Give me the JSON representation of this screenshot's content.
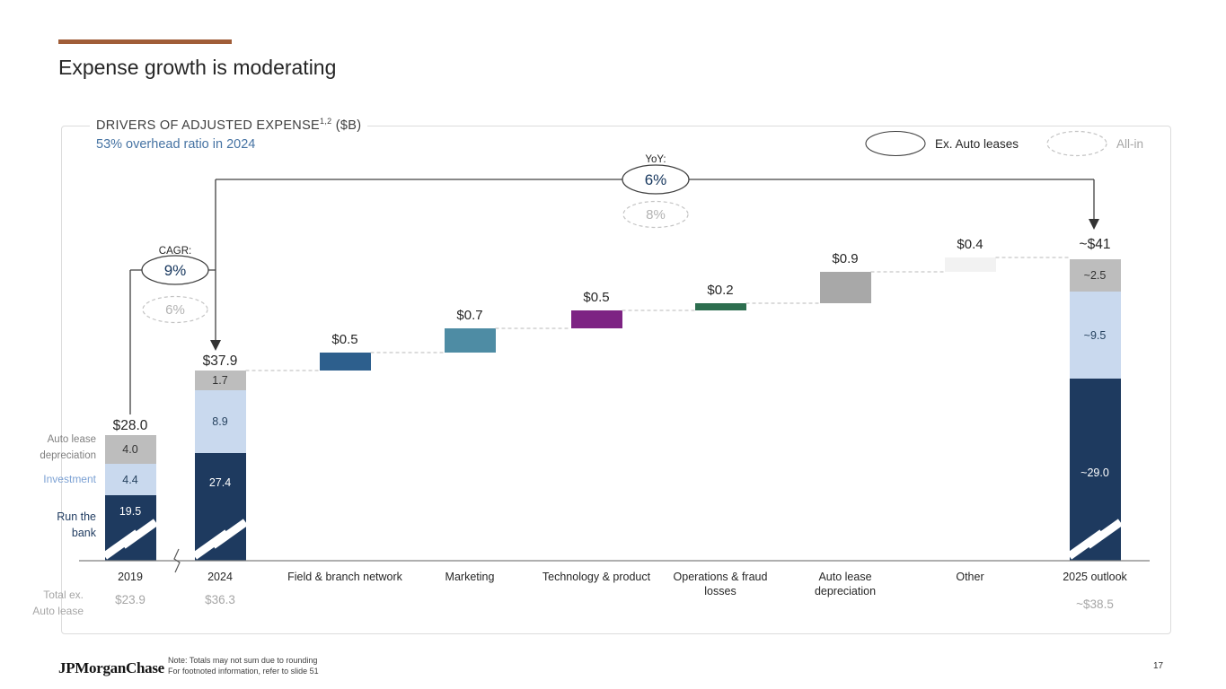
{
  "slide": {
    "title": "Expense growth is moderating",
    "accent_color": "#a05d38",
    "footer_logo": "JPMorganChase",
    "note_line1": "Note: Totals may not sum due to rounding",
    "note_line2": "For footnoted information, refer to slide 51",
    "page_number": "17"
  },
  "chart": {
    "heading": "DRIVERS OF ADJUSTED EXPENSE",
    "heading_superscript": "1,2",
    "heading_suffix": " ($B)",
    "subtitle": "53% overhead ratio in 2024"
  },
  "chart_data": {
    "type": "bar",
    "subtype": "waterfall_with_stacked_endpoints",
    "unit": "$B",
    "title": "DRIVERS OF ADJUSTED EXPENSE ($B)",
    "subtitle": "53% overhead ratio in 2024",
    "axis_break": true,
    "columns": [
      {
        "kind": "stack",
        "category": "2019",
        "total_label": "$28.0",
        "sub_label": "$23.9",
        "segments": [
          {
            "name": "Run the bank",
            "label": "19.5",
            "value": 19.5,
            "color": "#1e3a5f",
            "text_color": "#ffffff"
          },
          {
            "name": "Investment",
            "label": "4.4",
            "value": 4.4,
            "color": "#c9d9ee",
            "text_color": "#26425f"
          },
          {
            "name": "Auto lease depreciation",
            "label": "4.0",
            "value": 4.0,
            "color": "#bdbdbd",
            "text_color": "#333333"
          }
        ]
      },
      {
        "kind": "stack",
        "category": "2024",
        "total_label": "$37.9",
        "sub_label": "$36.3",
        "segments": [
          {
            "name": "Run the bank",
            "label": "27.4",
            "value": 27.4,
            "color": "#1e3a5f",
            "text_color": "#ffffff"
          },
          {
            "name": "Investment",
            "label": "8.9",
            "value": 8.9,
            "color": "#c9d9ee",
            "text_color": "#26425f"
          },
          {
            "name": "Auto lease depreciation",
            "label": "1.7",
            "value": 1.7,
            "color": "#bdbdbd",
            "text_color": "#333333"
          }
        ]
      },
      {
        "kind": "step",
        "category": "Field & branch network",
        "label": "$0.5",
        "value": 0.5,
        "color": "#2d5f8d"
      },
      {
        "kind": "step",
        "category": "Marketing",
        "label": "$0.7",
        "value": 0.7,
        "color": "#4e8ca4"
      },
      {
        "kind": "step",
        "category": "Technology & product",
        "label": "$0.5",
        "value": 0.5,
        "color": "#7d2383"
      },
      {
        "kind": "step",
        "category": "Operations & fraud losses",
        "label": "$0.2",
        "value": 0.2,
        "color": "#2d6e4f"
      },
      {
        "kind": "step",
        "category": "Auto lease depreciation",
        "label": "$0.9",
        "value": 0.9,
        "color": "#a8a8a8"
      },
      {
        "kind": "step",
        "category": "Other",
        "label": "$0.4",
        "value": 0.4,
        "color": "#f2f2f2"
      },
      {
        "kind": "stack",
        "category": "2025 outlook",
        "total_label": "~$41",
        "sub_label": "~$38.5",
        "segments": [
          {
            "name": "Run the bank",
            "label": "~29.0",
            "value": 29.0,
            "color": "#1e3a5f",
            "text_color": "#ffffff"
          },
          {
            "name": "Investment",
            "label": "~9.5",
            "value": 9.5,
            "color": "#c9d9ee",
            "text_color": "#26425f"
          },
          {
            "name": "Auto lease depreciation",
            "label": "~2.5",
            "value": 2.5,
            "color": "#bdbdbd",
            "text_color": "#333333"
          }
        ]
      }
    ],
    "annotations": {
      "cagr": {
        "label": "CAGR:",
        "ex_auto_leases": "9%",
        "all_in": "6%",
        "span": [
          "2019",
          "2024"
        ]
      },
      "yoy": {
        "label": "YoY:",
        "ex_auto_leases": "6%",
        "all_in": "8%",
        "span": [
          "2024",
          "2025 outlook"
        ]
      }
    },
    "legend": [
      {
        "label": "Ex. Auto leases",
        "marker": "solid-ellipse"
      },
      {
        "label": "All-in",
        "marker": "dashed-ellipse"
      }
    ],
    "side_labels": [
      {
        "text": "Auto lease\ndepreciation",
        "color": "#808080"
      },
      {
        "text": "Investment",
        "color": "#7da2d4"
      },
      {
        "text": "Run the\nbank",
        "color": "#1e3a5f"
      },
      {
        "text": "Total ex.\nAuto lease",
        "color": "#a6a6a6"
      }
    ]
  }
}
